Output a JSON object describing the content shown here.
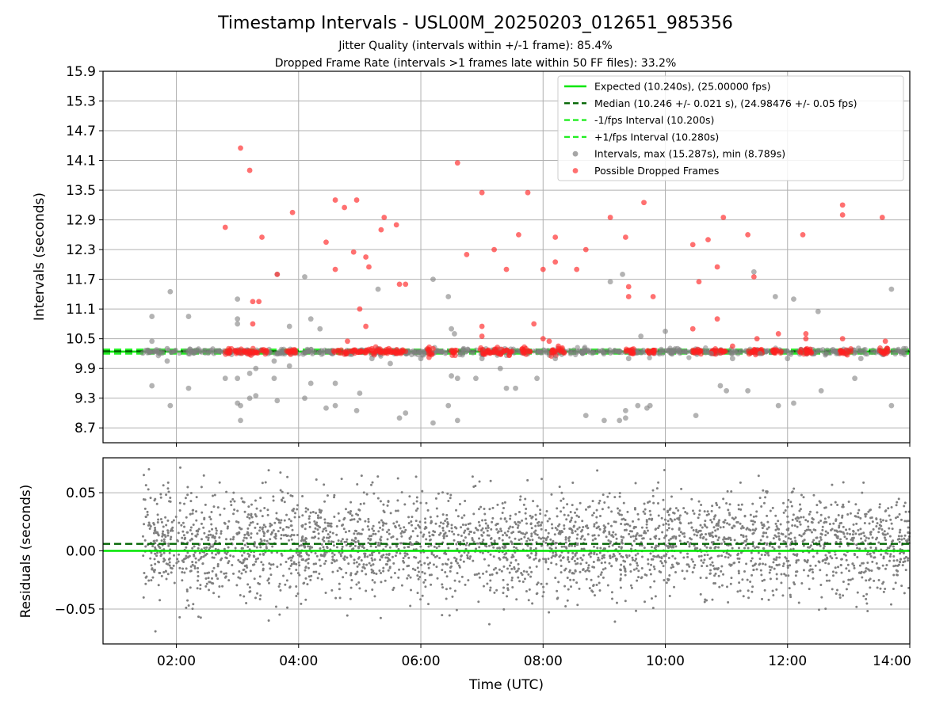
{
  "figure": {
    "title": "Timestamp Intervals - USL00M_20250203_012651_985356",
    "subtitle_1": "Jitter Quality (intervals within +/-1 frame): 85.4%",
    "subtitle_2": "Dropped Frame Rate (intervals >1 frames late within 50 FF files): 33.2%"
  },
  "chart_data": [
    {
      "type": "scatter",
      "panel": "top",
      "ylabel": "Intervals (seconds)",
      "xlim_hours": [
        0.8,
        14.0
      ],
      "ylim": [
        8.4,
        15.9
      ],
      "yticks": [
        "15.9",
        "15.3",
        "14.7",
        "14.1",
        "13.5",
        "12.9",
        "12.3",
        "11.7",
        "11.1",
        "10.5",
        "9.9",
        "9.3",
        "8.7"
      ],
      "ytick_values": [
        15.9,
        15.3,
        14.7,
        14.1,
        13.5,
        12.9,
        12.3,
        11.7,
        11.1,
        10.5,
        9.9,
        9.3,
        8.7
      ],
      "grid": true,
      "legend_position": "top-right",
      "reference_lines": [
        {
          "label": "Expected (10.240s), (25.00000 fps)",
          "y": 10.24,
          "color": "#00e600",
          "style": "solid"
        },
        {
          "label": "Median (10.246 +/- 0.021 s), (24.98476 +/- 0.05 fps)",
          "y": 10.246,
          "color": "#006400",
          "style": "dashed"
        },
        {
          "label": "-1/fps Interval (10.200s)",
          "y": 10.2,
          "color": "#22ee22",
          "style": "dashed"
        },
        {
          "label": "+1/fps Interval (10.280s)",
          "y": 10.28,
          "color": "#22ee22",
          "style": "dashed"
        }
      ],
      "series": [
        {
          "label": "Intervals, max (15.287s), min (8.789s)",
          "color": "#808080",
          "points": [
            [
              1.45,
              10.21
            ],
            [
              1.6,
              10.95
            ],
            [
              1.6,
              10.45
            ],
            [
              1.6,
              9.55
            ],
            [
              1.85,
              10.3
            ],
            [
              1.85,
              10.05
            ],
            [
              1.9,
              11.45
            ],
            [
              1.9,
              9.15
            ],
            [
              2.2,
              10.95
            ],
            [
              2.2,
              9.5
            ],
            [
              2.4,
              10.25
            ],
            [
              2.8,
              9.7
            ],
            [
              3.0,
              11.3
            ],
            [
              3.0,
              10.9
            ],
            [
              3.0,
              10.8
            ],
            [
              3.0,
              9.7
            ],
            [
              3.0,
              9.2
            ],
            [
              3.05,
              9.15
            ],
            [
              3.05,
              8.85
            ],
            [
              3.2,
              9.8
            ],
            [
              3.2,
              9.3
            ],
            [
              3.3,
              9.35
            ],
            [
              3.3,
              9.9
            ],
            [
              3.6,
              10.05
            ],
            [
              3.6,
              9.7
            ],
            [
              3.65,
              11.8
            ],
            [
              3.65,
              9.25
            ],
            [
              3.85,
              10.75
            ],
            [
              3.85,
              9.95
            ],
            [
              4.1,
              11.75
            ],
            [
              4.1,
              9.3
            ],
            [
              4.2,
              10.9
            ],
            [
              4.2,
              9.6
            ],
            [
              4.35,
              10.7
            ],
            [
              4.45,
              9.1
            ],
            [
              4.6,
              9.15
            ],
            [
              4.6,
              9.6
            ],
            [
              4.95,
              9.05
            ],
            [
              5.0,
              9.4
            ],
            [
              5.2,
              10.1
            ],
            [
              5.3,
              11.5
            ],
            [
              5.5,
              10.0
            ],
            [
              5.65,
              8.9
            ],
            [
              5.75,
              9.0
            ],
            [
              6.0,
              10.1
            ],
            [
              6.2,
              11.7
            ],
            [
              6.2,
              8.8
            ],
            [
              6.45,
              11.35
            ],
            [
              6.45,
              9.15
            ],
            [
              6.5,
              10.7
            ],
            [
              6.5,
              9.75
            ],
            [
              6.55,
              10.6
            ],
            [
              6.6,
              8.85
            ],
            [
              6.6,
              9.7
            ],
            [
              6.7,
              10.3
            ],
            [
              6.9,
              9.7
            ],
            [
              7.0,
              10.1
            ],
            [
              7.3,
              9.9
            ],
            [
              7.4,
              9.5
            ],
            [
              7.55,
              9.5
            ],
            [
              7.9,
              9.7
            ],
            [
              8.2,
              10.1
            ],
            [
              8.45,
              10.2
            ],
            [
              8.7,
              8.95
            ],
            [
              9.0,
              8.85
            ],
            [
              9.1,
              11.65
            ],
            [
              9.25,
              8.85
            ],
            [
              9.3,
              11.8
            ],
            [
              9.35,
              9.05
            ],
            [
              9.35,
              8.9
            ],
            [
              9.4,
              10.1
            ],
            [
              9.55,
              9.15
            ],
            [
              9.6,
              10.55
            ],
            [
              9.7,
              9.1
            ],
            [
              9.75,
              9.15
            ],
            [
              10.0,
              10.65
            ],
            [
              10.1,
              10.2
            ],
            [
              10.2,
              10.3
            ],
            [
              10.5,
              8.95
            ],
            [
              10.75,
              10.2
            ],
            [
              10.9,
              9.55
            ],
            [
              11.0,
              9.45
            ],
            [
              11.1,
              10.1
            ],
            [
              11.35,
              9.45
            ],
            [
              11.45,
              11.85
            ],
            [
              11.55,
              10.2
            ],
            [
              11.8,
              11.35
            ],
            [
              11.85,
              9.15
            ],
            [
              12.0,
              10.1
            ],
            [
              12.1,
              11.3
            ],
            [
              12.1,
              9.2
            ],
            [
              12.5,
              11.05
            ],
            [
              12.55,
              9.45
            ],
            [
              12.8,
              10.2
            ],
            [
              13.1,
              9.7
            ],
            [
              13.2,
              10.1
            ],
            [
              13.7,
              11.5
            ],
            [
              13.7,
              9.15
            ],
            [
              13.9,
              10.3
            ]
          ]
        },
        {
          "label": "Possible Dropped Frames",
          "color": "#ff3333",
          "points": [
            [
              2.8,
              12.75
            ],
            [
              3.05,
              14.35
            ],
            [
              3.2,
              13.9
            ],
            [
              3.25,
              11.25
            ],
            [
              3.25,
              10.8
            ],
            [
              3.35,
              11.25
            ],
            [
              3.4,
              12.55
            ],
            [
              3.65,
              11.8
            ],
            [
              3.9,
              13.05
            ],
            [
              4.45,
              12.45
            ],
            [
              4.6,
              13.3
            ],
            [
              4.6,
              11.9
            ],
            [
              4.75,
              13.15
            ],
            [
              4.8,
              10.45
            ],
            [
              4.9,
              12.25
            ],
            [
              4.95,
              13.3
            ],
            [
              5.0,
              11.1
            ],
            [
              5.1,
              12.15
            ],
            [
              5.1,
              10.75
            ],
            [
              5.15,
              11.95
            ],
            [
              5.2,
              10.3
            ],
            [
              5.35,
              12.7
            ],
            [
              5.4,
              12.95
            ],
            [
              5.6,
              12.8
            ],
            [
              5.65,
              11.6
            ],
            [
              5.75,
              11.6
            ],
            [
              6.2,
              10.3
            ],
            [
              6.6,
              14.05
            ],
            [
              6.75,
              12.2
            ],
            [
              7.0,
              13.45
            ],
            [
              7.0,
              10.75
            ],
            [
              7.0,
              10.55
            ],
            [
              7.2,
              12.3
            ],
            [
              7.4,
              11.9
            ],
            [
              7.6,
              12.6
            ],
            [
              7.75,
              13.45
            ],
            [
              7.85,
              10.8
            ],
            [
              8.0,
              11.9
            ],
            [
              8.0,
              10.5
            ],
            [
              8.1,
              10.45
            ],
            [
              8.2,
              12.55
            ],
            [
              8.2,
              12.05
            ],
            [
              8.25,
              10.35
            ],
            [
              8.55,
              11.9
            ],
            [
              8.7,
              12.3
            ],
            [
              9.1,
              12.95
            ],
            [
              9.35,
              12.55
            ],
            [
              9.4,
              11.55
            ],
            [
              9.4,
              11.35
            ],
            [
              9.65,
              13.25
            ],
            [
              9.8,
              11.35
            ],
            [
              10.45,
              12.4
            ],
            [
              10.45,
              10.7
            ],
            [
              10.55,
              11.65
            ],
            [
              10.7,
              12.5
            ],
            [
              10.85,
              11.95
            ],
            [
              10.85,
              10.9
            ],
            [
              10.95,
              12.95
            ],
            [
              11.1,
              10.35
            ],
            [
              11.35,
              12.6
            ],
            [
              11.45,
              11.75
            ],
            [
              11.5,
              10.5
            ],
            [
              11.85,
              10.6
            ],
            [
              12.25,
              12.6
            ],
            [
              12.3,
              10.6
            ],
            [
              12.3,
              10.5
            ],
            [
              12.9,
              13.2
            ],
            [
              12.9,
              13.0
            ],
            [
              12.9,
              10.5
            ],
            [
              13.55,
              12.95
            ],
            [
              13.6,
              10.45
            ]
          ]
        }
      ],
      "dense_band": {
        "center": 10.24,
        "spread": 0.05,
        "note": "a continuous ribbon of grey intervals and red dropped-frame markers lies along the expected interval"
      }
    },
    {
      "type": "scatter",
      "panel": "bottom",
      "xlabel": "Time (UTC)",
      "ylabel": "Residuals (seconds)",
      "xlim_hours": [
        0.8,
        14.0
      ],
      "ylim": [
        -0.08,
        0.08
      ],
      "xticks": [
        "02:00",
        "04:00",
        "06:00",
        "08:00",
        "10:00",
        "12:00",
        "14:00"
      ],
      "xtick_hours": [
        2,
        4,
        6,
        8,
        10,
        12,
        14
      ],
      "yticks": [
        "0.05",
        "0.00",
        "−0.05"
      ],
      "ytick_values": [
        0.05,
        0.0,
        -0.05
      ],
      "grid": true,
      "reference_lines": [
        {
          "y": 0.0,
          "color": "#00e600",
          "style": "solid"
        },
        {
          "y": 0.006,
          "color": "#006400",
          "style": "dashed"
        }
      ],
      "series": [
        {
          "color": "#808080",
          "x_start_hours": 1.45,
          "x_end_hours": 14.0,
          "count": 3200,
          "mean": 0.006,
          "spread": 0.022,
          "min": -0.078,
          "max": 0.072
        }
      ]
    }
  ]
}
